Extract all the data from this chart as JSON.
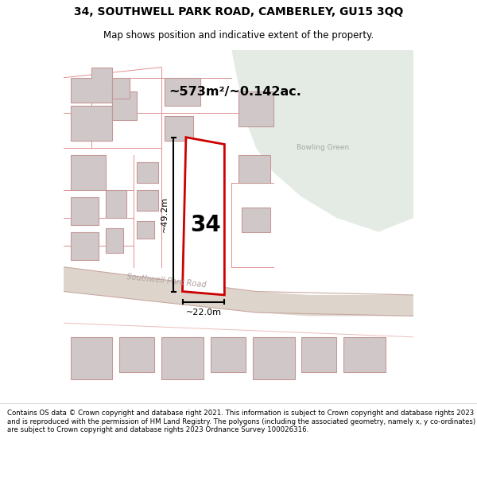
{
  "title": "34, SOUTHWELL PARK ROAD, CAMBERLEY, GU15 3QQ",
  "subtitle": "Map shows position and indicative extent of the property.",
  "footer": "Contains OS data © Crown copyright and database right 2021. This information is subject to Crown copyright and database rights 2023 and is reproduced with the permission of HM Land Registry. The polygons (including the associated geometry, namely x, y co-ordinates) are subject to Crown copyright and database rights 2023 Ordnance Survey 100026316.",
  "area_label": "~573m²/~0.142ac.",
  "label_34": "34",
  "dim_width": "~22.0m",
  "dim_height": "~49.2m",
  "road_label": "Southwell Park Road",
  "bowling_green_label": "Bowling Green",
  "map_bg": "#f2eeee",
  "green_area_color": "#e4ebe4",
  "road_fill": "#ddd5cc",
  "building_fill": "#d0c8c8",
  "building_ec": "#c49898",
  "red_polygon_color": "#cc0000",
  "road_line_color": "#e09090",
  "title_fontsize": 10,
  "subtitle_fontsize": 8.5,
  "footer_fontsize": 6.2
}
